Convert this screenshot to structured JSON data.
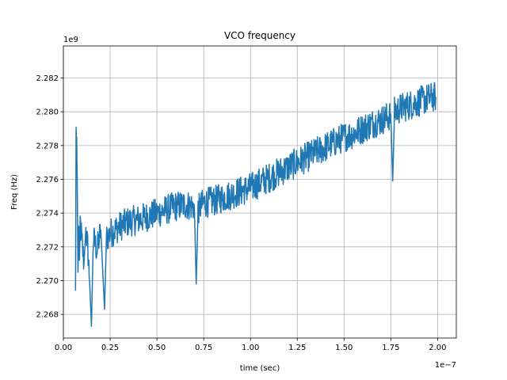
{
  "chart_data": {
    "type": "line",
    "title": "VCO frequency",
    "xlabel": "time (sec)",
    "ylabel": "Freq (Hz)",
    "x_offset_label": "1e−7",
    "y_offset_label": "1e9",
    "xlim": [
      0.0,
      2.1
    ],
    "ylim": [
      2.2666,
      2.2839
    ],
    "xticks": [
      0.0,
      0.25,
      0.5,
      0.75,
      1.0,
      1.25,
      1.5,
      1.75,
      2.0
    ],
    "xtick_labels": [
      "0.00",
      "0.25",
      "0.50",
      "0.75",
      "1.00",
      "1.25",
      "1.50",
      "1.75",
      "2.00"
    ],
    "yticks": [
      2.268,
      2.27,
      2.272,
      2.274,
      2.276,
      2.278,
      2.28,
      2.282
    ],
    "ytick_labels": [
      "2.268",
      "2.270",
      "2.272",
      "2.274",
      "2.276",
      "2.278",
      "2.280",
      "2.282"
    ],
    "grid": true,
    "series": [
      {
        "name": "",
        "color": "#1f77b4",
        "x": [
          0.065,
          0.068,
          0.071,
          0.074,
          0.078,
          0.082,
          0.086,
          0.09,
          0.1,
          0.11,
          0.12,
          0.13,
          0.14,
          0.15,
          0.16,
          0.18,
          0.2,
          0.22,
          0.23,
          0.25,
          0.3,
          0.35,
          0.4,
          0.45,
          0.5,
          0.55,
          0.6,
          0.65,
          0.7,
          0.71,
          0.72,
          0.75,
          0.8,
          0.85,
          0.9,
          0.95,
          1.0,
          1.05,
          1.1,
          1.15,
          1.2,
          1.25,
          1.3,
          1.35,
          1.4,
          1.45,
          1.5,
          1.55,
          1.6,
          1.65,
          1.7,
          1.75,
          1.76,
          1.77,
          1.8,
          1.85,
          1.9,
          1.95,
          1.99
        ],
        "y": [
          2.2694,
          2.2788,
          2.2785,
          2.276,
          2.2705,
          2.273,
          2.2712,
          2.2735,
          2.2722,
          2.271,
          2.273,
          2.272,
          2.27,
          2.2673,
          2.2725,
          2.2718,
          2.273,
          2.2683,
          2.2725,
          2.2728,
          2.2732,
          2.2735,
          2.2736,
          2.2738,
          2.274,
          2.2742,
          2.2744,
          2.2745,
          2.2744,
          2.2698,
          2.2742,
          2.2746,
          2.2747,
          2.2749,
          2.2751,
          2.2753,
          2.2755,
          2.2758,
          2.2761,
          2.2764,
          2.2767,
          2.277,
          2.2773,
          2.2776,
          2.2779,
          2.2782,
          2.2785,
          2.2787,
          2.279,
          2.2793,
          2.2795,
          2.2798,
          2.2759,
          2.28,
          2.2802,
          2.2804,
          2.2806,
          2.2808,
          2.2809
        ],
        "noise_amplitude": 0.0009
      }
    ]
  }
}
